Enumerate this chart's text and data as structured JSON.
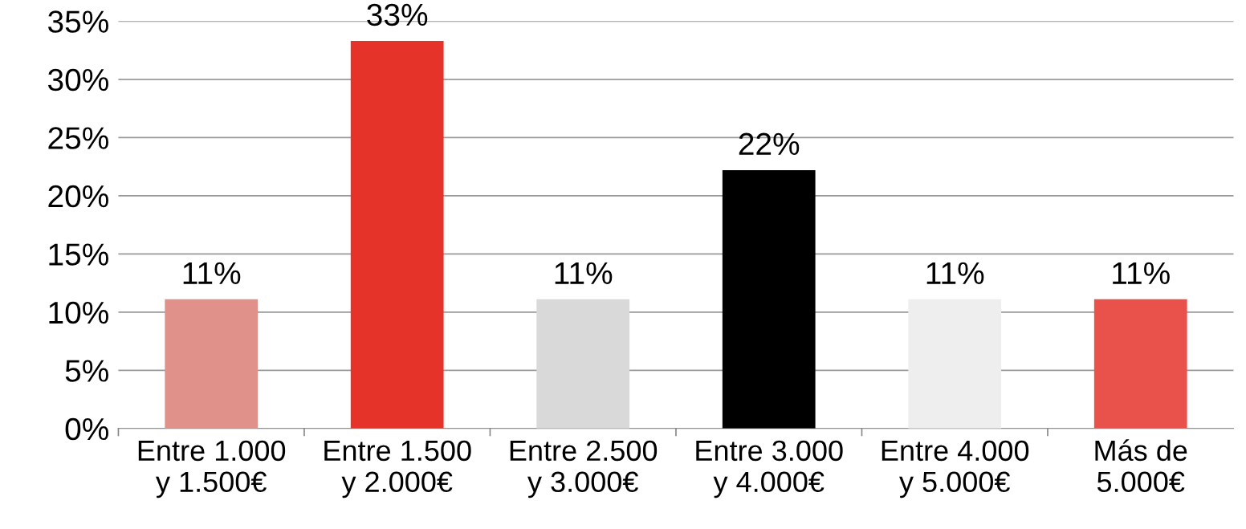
{
  "chart_data": {
    "type": "bar",
    "categories": [
      "Entre 1.000\ny 1.500€",
      "Entre 1.500\ny 2.000€",
      "Entre 2.500\ny 3.000€",
      "Entre 3.000\ny 4.000€",
      "Entre 4.000\ny 5.000€",
      "Más de\n5.000€"
    ],
    "values": [
      11.1,
      33.3,
      11.1,
      22.2,
      11.1,
      11.1
    ],
    "value_labels": [
      "11%",
      "33%",
      "11%",
      "22%",
      "11%",
      "11%"
    ],
    "colors": [
      "#e0928a",
      "#e5332a",
      "#d9d9d9",
      "#000000",
      "#eeeeee",
      "#e8524a"
    ],
    "ylim": [
      0,
      35
    ],
    "yticks": [
      {
        "value": 0,
        "label": "0%"
      },
      {
        "value": 5,
        "label": "5%"
      },
      {
        "value": 10,
        "label": "10%"
      },
      {
        "value": 15,
        "label": "15%"
      },
      {
        "value": 20,
        "label": "20%"
      },
      {
        "value": 25,
        "label": "25%"
      },
      {
        "value": 30,
        "label": "30%"
      },
      {
        "value": 35,
        "label": "35%"
      }
    ],
    "grid": "y",
    "legend": false
  }
}
